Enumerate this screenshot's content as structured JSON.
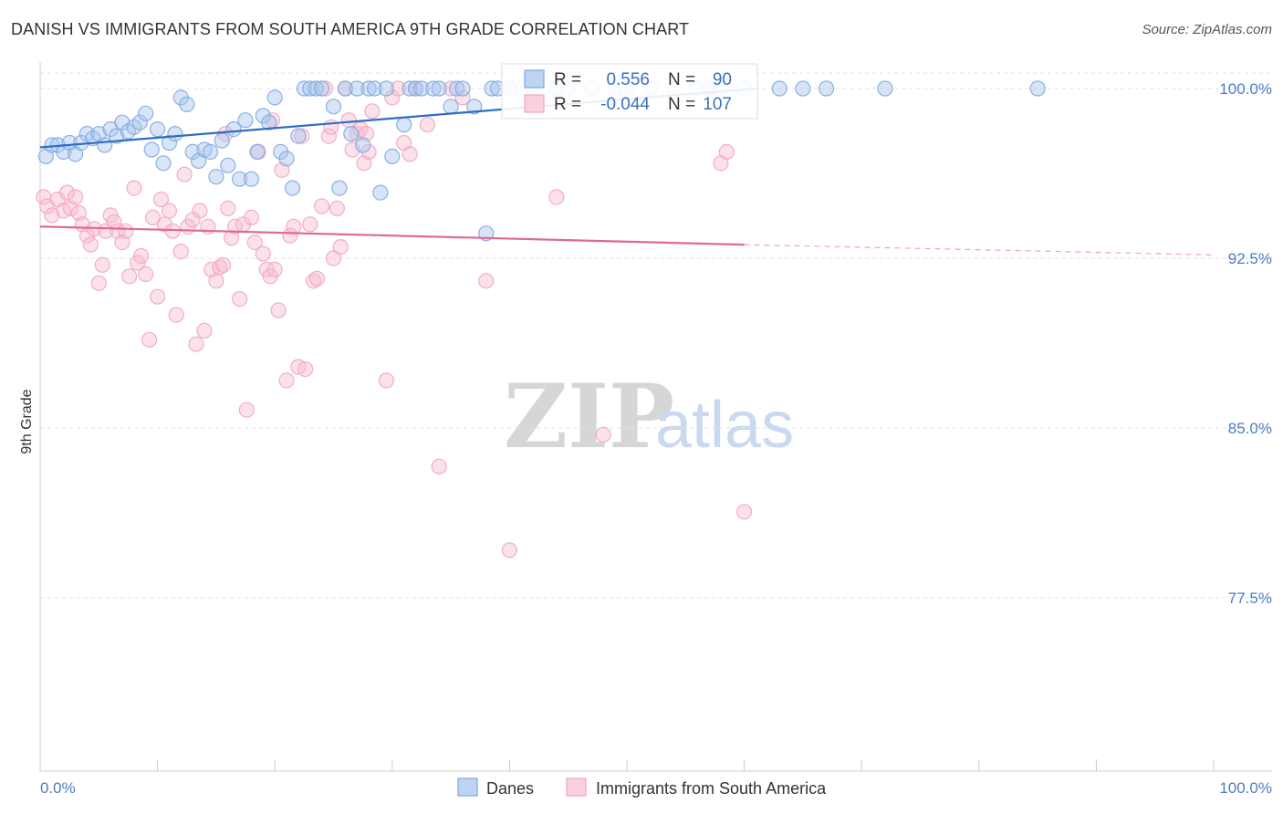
{
  "title": "DANISH VS IMMIGRANTS FROM SOUTH AMERICA 9TH GRADE CORRELATION CHART",
  "source": "Source: ZipAtlas.com",
  "watermark": {
    "zip": "ZIP",
    "atlas": "atlas"
  },
  "chart_data": {
    "type": "scatter",
    "title": "DANISH VS IMMIGRANTS FROM SOUTH AMERICA 9TH GRADE CORRELATION CHART",
    "xlabel": "",
    "ylabel": "9th Grade",
    "xlim": [
      0,
      100
    ],
    "ylim": [
      70.0,
      100.7
    ],
    "x_tick_labels": [
      "0.0%",
      "100.0%"
    ],
    "y_ticks": [
      100.0,
      92.5,
      85.0,
      77.5
    ],
    "y_tick_labels": [
      "100.0%",
      "92.5%",
      "85.0%",
      "77.5%"
    ],
    "grid": true,
    "legend_position": "top-center",
    "series": [
      {
        "name": "Danes",
        "color": "#7fa8e0",
        "line_color": "#2f6cc4",
        "R": "0.556",
        "N": "90",
        "trend": {
          "x0": 0,
          "y0": 97.4,
          "x1": 61,
          "y1": 100.0
        },
        "points": [
          [
            0.5,
            97.0
          ],
          [
            1,
            97.5
          ],
          [
            1.5,
            97.5
          ],
          [
            2,
            97.2
          ],
          [
            2.5,
            97.6
          ],
          [
            3,
            97.1
          ],
          [
            3.5,
            97.6
          ],
          [
            4,
            98.0
          ],
          [
            4.5,
            97.8
          ],
          [
            5,
            98.0
          ],
          [
            5.5,
            97.5
          ],
          [
            6,
            98.2
          ],
          [
            6.5,
            97.9
          ],
          [
            7,
            98.5
          ],
          [
            7.5,
            98.1
          ],
          [
            8,
            98.3
          ],
          [
            8.5,
            98.5
          ],
          [
            9,
            98.9
          ],
          [
            9.5,
            97.3
          ],
          [
            10,
            98.2
          ],
          [
            10.5,
            96.7
          ],
          [
            11,
            97.6
          ],
          [
            11.5,
            98.0
          ],
          [
            12,
            99.6
          ],
          [
            12.5,
            99.3
          ],
          [
            13,
            97.2
          ],
          [
            13.5,
            96.8
          ],
          [
            14,
            97.3
          ],
          [
            14.5,
            97.2
          ],
          [
            15,
            96.1
          ],
          [
            15.5,
            97.7
          ],
          [
            16,
            96.6
          ],
          [
            16.5,
            98.2
          ],
          [
            17,
            96.0
          ],
          [
            17.5,
            98.6
          ],
          [
            18,
            96.0
          ],
          [
            18.5,
            97.2
          ],
          [
            19,
            98.8
          ],
          [
            19.5,
            98.5
          ],
          [
            20,
            99.6
          ],
          [
            20.5,
            97.2
          ],
          [
            21,
            96.9
          ],
          [
            21.5,
            95.6
          ],
          [
            22,
            97.9
          ],
          [
            22.5,
            100.0
          ],
          [
            23,
            100.0
          ],
          [
            23.5,
            100.0
          ],
          [
            24,
            100.0
          ],
          [
            25,
            99.2
          ],
          [
            25.5,
            95.6
          ],
          [
            26,
            100.0
          ],
          [
            26.5,
            98.0
          ],
          [
            27,
            100.0
          ],
          [
            27.5,
            97.5
          ],
          [
            28,
            100.0
          ],
          [
            28.5,
            100.0
          ],
          [
            29,
            95.4
          ],
          [
            29.5,
            100.0
          ],
          [
            30,
            97.0
          ],
          [
            31,
            98.4
          ],
          [
            31.5,
            100.0
          ],
          [
            32,
            100.0
          ],
          [
            32.5,
            100.0
          ],
          [
            33.5,
            100.0
          ],
          [
            34,
            100.0
          ],
          [
            35,
            99.2
          ],
          [
            35.5,
            100.0
          ],
          [
            36,
            100.0
          ],
          [
            37,
            99.2
          ],
          [
            38,
            93.6
          ],
          [
            38.5,
            100.0
          ],
          [
            39,
            100.0
          ],
          [
            40,
            100.0
          ],
          [
            41,
            100.0
          ],
          [
            42,
            100.0
          ],
          [
            44,
            100.0
          ],
          [
            45,
            100.0
          ],
          [
            47,
            100.0
          ],
          [
            49,
            100.0
          ],
          [
            50,
            100.0
          ],
          [
            52,
            100.0
          ],
          [
            56,
            100.0
          ],
          [
            57,
            100.0
          ],
          [
            58,
            100.0
          ],
          [
            60,
            100.0
          ],
          [
            63,
            100.0
          ],
          [
            65,
            100.0
          ],
          [
            67,
            100.0
          ],
          [
            72,
            100.0
          ],
          [
            85,
            100.0
          ]
        ]
      },
      {
        "name": "Immigrants from South America",
        "color": "#f3a6bf",
        "line_color": "#e06894",
        "R": "-0.044",
        "N": "107",
        "trend": {
          "x0": 0,
          "y0": 93.9,
          "x1": 60,
          "y1": 93.1,
          "dash_to_x": 100,
          "dash_to_y": 92.65
        },
        "points": [
          [
            0.3,
            95.2
          ],
          [
            0.6,
            94.8
          ],
          [
            1,
            94.4
          ],
          [
            1.5,
            95.1
          ],
          [
            2,
            94.6
          ],
          [
            2.3,
            95.4
          ],
          [
            2.6,
            94.7
          ],
          [
            3,
            95.2
          ],
          [
            3.3,
            94.5
          ],
          [
            3.6,
            94.0
          ],
          [
            4,
            93.5
          ],
          [
            4.3,
            93.1
          ],
          [
            4.6,
            93.8
          ],
          [
            5,
            91.4
          ],
          [
            5.3,
            92.2
          ],
          [
            5.6,
            93.7
          ],
          [
            6,
            94.4
          ],
          [
            6.3,
            94.1
          ],
          [
            6.6,
            93.7
          ],
          [
            7,
            93.2
          ],
          [
            7.3,
            93.7
          ],
          [
            7.6,
            91.7
          ],
          [
            8,
            95.6
          ],
          [
            8.3,
            92.3
          ],
          [
            8.6,
            92.6
          ],
          [
            9,
            91.8
          ],
          [
            9.3,
            88.9
          ],
          [
            9.6,
            94.3
          ],
          [
            10,
            90.8
          ],
          [
            10.3,
            95.1
          ],
          [
            10.6,
            94.0
          ],
          [
            11,
            94.6
          ],
          [
            11.3,
            93.7
          ],
          [
            11.6,
            90.0
          ],
          [
            12,
            92.8
          ],
          [
            12.3,
            96.2
          ],
          [
            12.6,
            93.9
          ],
          [
            13,
            94.2
          ],
          [
            13.3,
            88.7
          ],
          [
            13.6,
            94.6
          ],
          [
            14,
            89.3
          ],
          [
            14.3,
            93.9
          ],
          [
            14.6,
            92.0
          ],
          [
            15,
            91.5
          ],
          [
            15.3,
            92.1
          ],
          [
            15.6,
            92.2
          ],
          [
            16,
            94.7
          ],
          [
            16.3,
            93.4
          ],
          [
            16.6,
            93.9
          ],
          [
            17,
            90.7
          ],
          [
            17.3,
            94.0
          ],
          [
            17.6,
            85.8
          ],
          [
            18,
            94.3
          ],
          [
            18.3,
            93.2
          ],
          [
            18.6,
            97.2
          ],
          [
            19,
            92.7
          ],
          [
            19.3,
            92.0
          ],
          [
            19.6,
            91.7
          ],
          [
            20,
            92.0
          ],
          [
            20.3,
            90.2
          ],
          [
            20.6,
            96.4
          ],
          [
            21,
            87.1
          ],
          [
            21.3,
            93.5
          ],
          [
            21.6,
            93.9
          ],
          [
            22,
            87.7
          ],
          [
            22.3,
            97.9
          ],
          [
            22.6,
            87.6
          ],
          [
            23,
            94.0
          ],
          [
            23.3,
            91.5
          ],
          [
            23.6,
            91.6
          ],
          [
            24,
            94.8
          ],
          [
            24.3,
            100.0
          ],
          [
            24.6,
            97.9
          ],
          [
            25,
            92.5
          ],
          [
            25.3,
            94.7
          ],
          [
            25.6,
            93.0
          ],
          [
            26,
            100.0
          ],
          [
            26.3,
            98.6
          ],
          [
            26.6,
            97.3
          ],
          [
            27,
            98.0
          ],
          [
            27.3,
            98.2
          ],
          [
            27.6,
            96.7
          ],
          [
            28,
            97.2
          ],
          [
            28.3,
            99.0
          ],
          [
            29.5,
            87.1
          ],
          [
            30,
            99.6
          ],
          [
            30.5,
            100.0
          ],
          [
            31,
            97.6
          ],
          [
            31.5,
            97.1
          ],
          [
            32,
            100.0
          ],
          [
            33,
            98.4
          ],
          [
            34,
            83.3
          ],
          [
            35,
            100.0
          ],
          [
            36,
            99.6
          ],
          [
            38,
            91.5
          ],
          [
            40,
            79.6
          ],
          [
            44,
            95.2
          ],
          [
            48,
            84.7
          ],
          [
            54,
            100.0
          ],
          [
            57,
            100.0
          ],
          [
            58,
            96.7
          ],
          [
            58.5,
            97.2
          ],
          [
            60,
            81.3
          ],
          [
            15.8,
            98.0
          ],
          [
            19.8,
            98.6
          ],
          [
            24.8,
            98.3
          ],
          [
            27.8,
            98.0
          ]
        ]
      }
    ]
  },
  "legend": {
    "r_label": "R =",
    "n_label": "N =",
    "danes_r": "0.556",
    "danes_n": "90",
    "imm_r": "-0.044",
    "imm_n": "107"
  },
  "bottom_legend": {
    "danes": "Danes",
    "immigrants": "Immigrants from South America"
  }
}
